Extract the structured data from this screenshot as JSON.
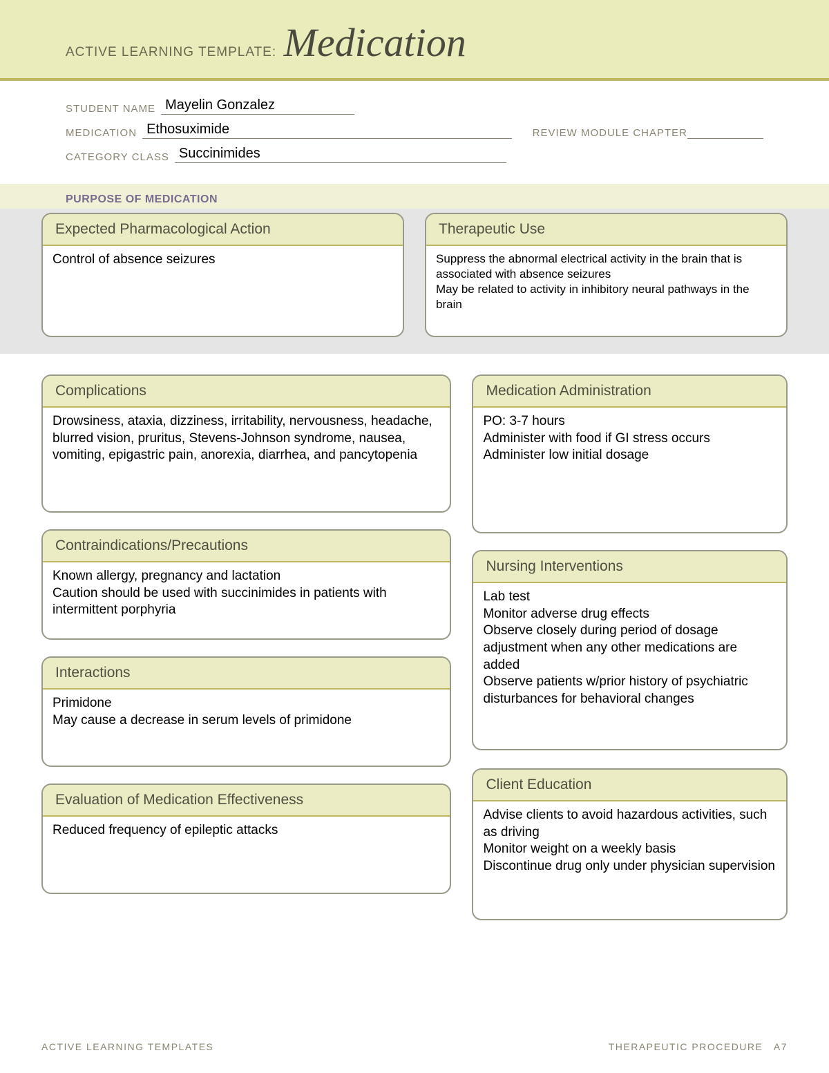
{
  "colors": {
    "header_band_bg": "#ebecbb",
    "header_rule": "#bcb760",
    "card_border": "#999988",
    "card_head_bg": "#ebecc4",
    "purpose_body_bg": "#e5e5e5",
    "label_color": "#8a8572",
    "purpose_title_color": "#7a6b8f"
  },
  "typography": {
    "title_font": "Georgia serif italic",
    "title_size_pt": 44,
    "body_font": "Arial",
    "body_size_pt": 14
  },
  "header": {
    "prefix": "ACTIVE LEARNING TEMPLATE:",
    "title": "Medication"
  },
  "info": {
    "student_label": "STUDENT NAME",
    "student_value": "Mayelin Gonzalez",
    "medication_label": "MEDICATION",
    "medication_value": "Ethosuximide",
    "review_label": "REVIEW MODULE CHAPTER",
    "review_value": "",
    "category_label": "CATEGORY CLASS",
    "category_value": "Succinimides"
  },
  "purpose": {
    "section_title": "PURPOSE OF MEDICATION",
    "expected": {
      "title": "Expected Pharmacological Action",
      "body": "Control of absence seizures"
    },
    "therapeutic": {
      "title": "Therapeutic Use",
      "body": "Suppress the abnormal electrical activity in the brain that is associated with absence seizures\nMay be related to activity in inhibitory neural pathways in the brain"
    }
  },
  "left": {
    "complications": {
      "title": "Complications",
      "body": "Drowsiness, ataxia, dizziness, irritability, nervousness, headache, blurred vision, pruritus, Stevens-Johnson syndrome, nausea, vomiting, epigastric pain, anorexia, diarrhea, and pancytopenia"
    },
    "contraindications": {
      "title": "Contraindications/Precautions",
      "body": "Known allergy, pregnancy and lactation\nCaution should be used with succinimides in patients with intermittent porphyria"
    },
    "interactions": {
      "title": "Interactions",
      "body": "Primidone\nMay cause a decrease in serum levels of primidone"
    },
    "evaluation": {
      "title": "Evaluation of Medication Effectiveness",
      "body": "Reduced frequency of epileptic attacks"
    }
  },
  "right": {
    "administration": {
      "title": "Medication Administration",
      "body": "PO: 3-7 hours\nAdminister with food if GI stress occurs\nAdminister low initial dosage"
    },
    "nursing": {
      "title": "Nursing Interventions",
      "body": "Lab test\nMonitor adverse drug effects\nObserve closely during period of dosage adjustment when any other medications are added\nObserve patients w/prior history of psychiatric disturbances for behavioral changes"
    },
    "education": {
      "title": "Client Education",
      "body": "Advise clients to avoid hazardous activities, such as driving\nMonitor weight on a weekly basis\nDiscontinue drug only under physician supervision"
    }
  },
  "footer": {
    "left": "ACTIVE LEARNING TEMPLATES",
    "right": "THERAPEUTIC PROCEDURE A7"
  }
}
